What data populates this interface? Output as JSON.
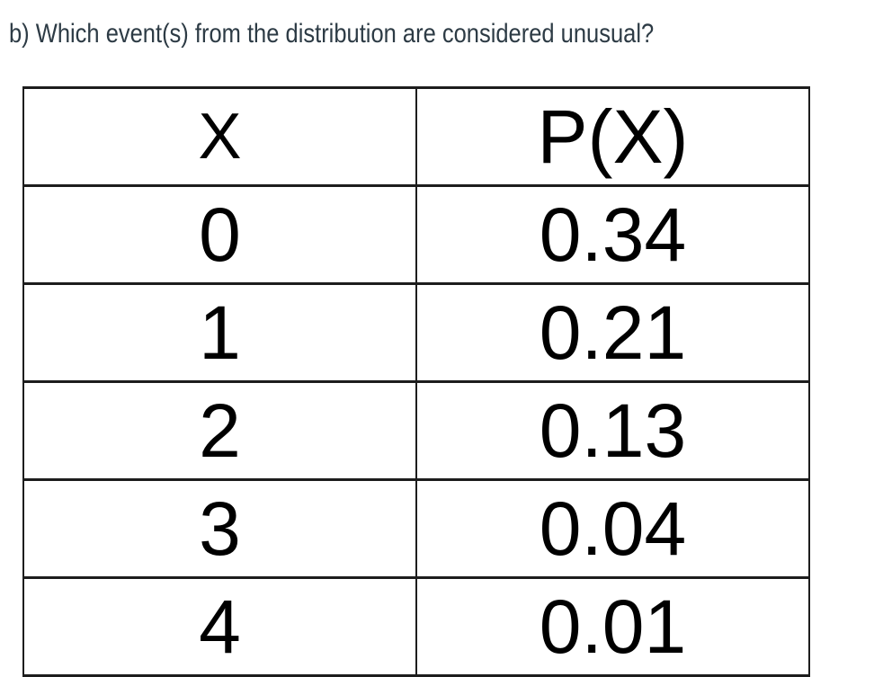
{
  "question": {
    "text": "b) Which event(s) from the distribution are considered unusual?"
  },
  "table": {
    "headers": [
      "X",
      "P(X)"
    ],
    "rows": [
      [
        "0",
        "0.34"
      ],
      [
        "1",
        "0.21"
      ],
      [
        "2",
        "0.13"
      ],
      [
        "3",
        "0.04"
      ],
      [
        "4",
        "0.01"
      ]
    ]
  },
  "chart_data": {
    "type": "table",
    "columns": [
      "X",
      "P(X)"
    ],
    "x": [
      0,
      1,
      2,
      3,
      4
    ],
    "p_x": [
      0.34,
      0.21,
      0.13,
      0.04,
      0.01
    ]
  },
  "colors": {
    "background": "#ffffff",
    "question_text": "#2d3b45",
    "table_text": "#000000",
    "table_border": "#1d1d1d"
  }
}
